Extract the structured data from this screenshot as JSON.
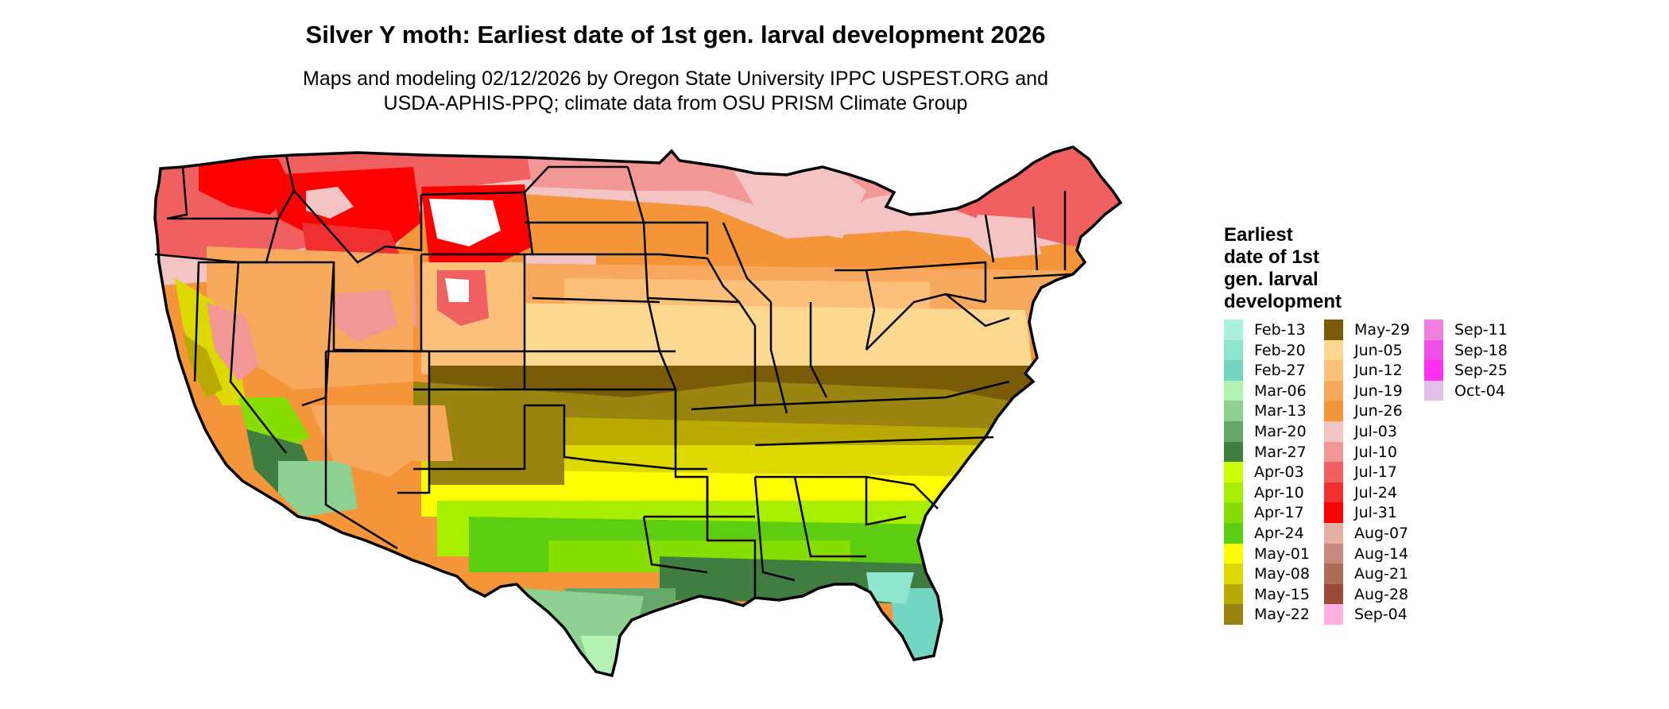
{
  "title": "Silver Y moth: Earliest date of 1st gen. larval development 2026",
  "subtitle_line1": "Maps and modeling 02/12/2026 by Oregon State University IPPC USPEST.ORG and",
  "subtitle_line2": "USDA-APHIS-PPQ; climate data from OSU PRISM Climate Group",
  "legend": {
    "title_lines": [
      "Earliest",
      "date of 1st",
      "gen. larval",
      "development"
    ],
    "items": [
      {
        "label": "Feb-13",
        "color": "#aaf0dc"
      },
      {
        "label": "Feb-20",
        "color": "#8ee6cf"
      },
      {
        "label": "Feb-27",
        "color": "#72d6c2"
      },
      {
        "label": "Mar-06",
        "color": "#b4f2b4"
      },
      {
        "label": "Mar-13",
        "color": "#8fd093"
      },
      {
        "label": "Mar-20",
        "color": "#66a86c"
      },
      {
        "label": "Mar-27",
        "color": "#3f7d41"
      },
      {
        "label": "Apr-03",
        "color": "#ccff00"
      },
      {
        "label": "Apr-10",
        "color": "#a8ee00"
      },
      {
        "label": "Apr-17",
        "color": "#88dd00"
      },
      {
        "label": "Apr-24",
        "color": "#5ccd10"
      },
      {
        "label": "May-01",
        "color": "#ffff00"
      },
      {
        "label": "May-08",
        "color": "#ddd800"
      },
      {
        "label": "May-15",
        "color": "#b9a900"
      },
      {
        "label": "May-22",
        "color": "#9a8410"
      },
      {
        "label": "May-29",
        "color": "#7a5c08"
      },
      {
        "label": "Jun-05",
        "color": "#fdd890"
      },
      {
        "label": "Jun-12",
        "color": "#fcc07a"
      },
      {
        "label": "Jun-19",
        "color": "#f8a95e"
      },
      {
        "label": "Jun-26",
        "color": "#f4953a"
      },
      {
        "label": "Jul-03",
        "color": "#f4c3c3"
      },
      {
        "label": "Jul-10",
        "color": "#f29696"
      },
      {
        "label": "Jul-17",
        "color": "#f06060"
      },
      {
        "label": "Jul-24",
        "color": "#f03030"
      },
      {
        "label": "Jul-31",
        "color": "#ff0000"
      },
      {
        "label": "Aug-07",
        "color": "#e2b0a5"
      },
      {
        "label": "Aug-14",
        "color": "#c78a7d"
      },
      {
        "label": "Aug-21",
        "color": "#b06a58"
      },
      {
        "label": "Aug-28",
        "color": "#9a4a36"
      },
      {
        "label": "Sep-04",
        "color": "#ffb0e0"
      },
      {
        "label": "Sep-11",
        "color": "#f080e0"
      },
      {
        "label": "Sep-18",
        "color": "#f050e8"
      },
      {
        "label": "Sep-25",
        "color": "#ff30f0"
      },
      {
        "label": "Oct-04",
        "color": "#e0c0ea"
      }
    ]
  },
  "map_colors": {
    "outline": "#000000",
    "high_elevation": "#ffffff"
  }
}
